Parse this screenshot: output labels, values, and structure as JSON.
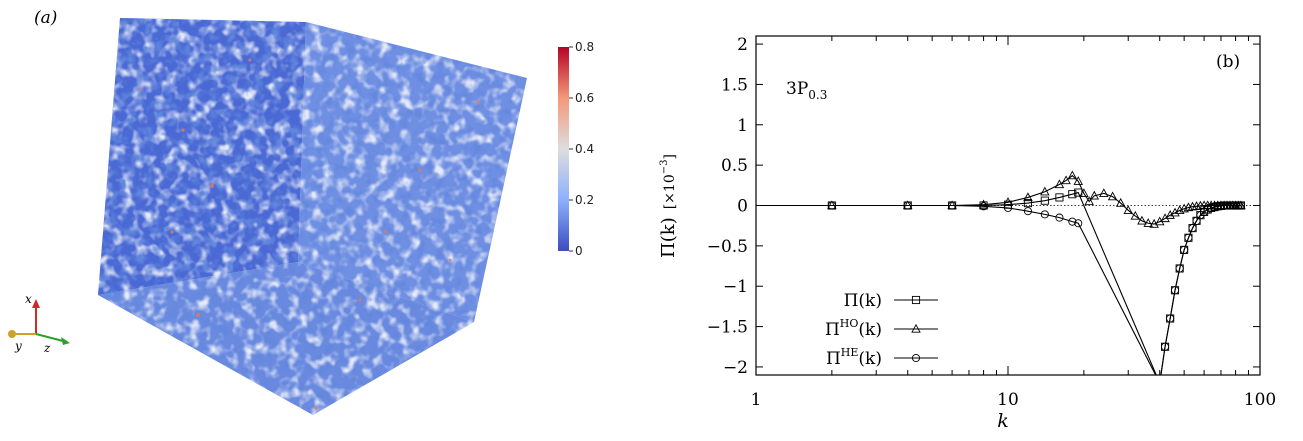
{
  "panel_a": {
    "label": "(a)",
    "colorbar": {
      "ticks": [
        "0.8",
        "0.6",
        "0.4",
        "0.2",
        "0"
      ],
      "min": 0,
      "max": 0.8,
      "colors": [
        "#3b4cc0",
        "#8db0fe",
        "#dddddd",
        "#f4987a",
        "#b40426"
      ]
    },
    "axes_triad": {
      "x": "x",
      "y": "y",
      "z": "z"
    },
    "colors": {
      "base": "#4f70d8",
      "x_axis": "#d62728",
      "y_axis": "#c9a227",
      "z_axis": "#2ca02c"
    }
  },
  "chart_data": {
    "type": "line",
    "panel_label": "(b)",
    "annotation": {
      "main": "3P",
      "subscript": "0.3"
    },
    "xlabel": "k",
    "ylabel": {
      "main": "Π(k)",
      "factor_prefix": "[×10",
      "factor_exponent": "−3",
      "factor_suffix": "]"
    },
    "xscale": "log",
    "xlim": [
      1,
      100
    ],
    "ylim": [
      -2.1,
      2.1
    ],
    "xticks": [
      {
        "value": 1,
        "label": "1"
      },
      {
        "value": 10,
        "label": "10"
      },
      {
        "value": 100,
        "label": "100"
      }
    ],
    "yticks": [
      {
        "value": 2,
        "label": "2"
      },
      {
        "value": 1.5,
        "label": "1.5"
      },
      {
        "value": 1,
        "label": "1"
      },
      {
        "value": 0.5,
        "label": "0.5"
      },
      {
        "value": 0,
        "label": "0"
      },
      {
        "value": -0.5,
        "label": "−0.5"
      },
      {
        "value": -1,
        "label": "−1"
      },
      {
        "value": -1.5,
        "label": "−1.5"
      },
      {
        "value": -2,
        "label": "−2"
      }
    ],
    "zero_line": true,
    "legend_position": "bottom-left",
    "series": [
      {
        "name": {
          "main": "Π(k)",
          "sup": ""
        },
        "marker": "square",
        "x": [
          2,
          4,
          6,
          8,
          10,
          12,
          14,
          16,
          18,
          19,
          40,
          42,
          44,
          46,
          48,
          50,
          52,
          54,
          56,
          58,
          60,
          62,
          64,
          66,
          68,
          70,
          72,
          74,
          76,
          78,
          80,
          82,
          84
        ],
        "y": [
          0,
          0,
          0,
          0,
          0.01,
          0.03,
          0.06,
          0.1,
          0.14,
          0.16,
          -2.2,
          -1.75,
          -1.4,
          -1.05,
          -0.78,
          -0.55,
          -0.4,
          -0.28,
          -0.19,
          -0.12,
          -0.08,
          -0.05,
          -0.03,
          -0.02,
          -0.01,
          -0.005,
          0,
          0,
          0,
          0,
          0,
          0,
          0
        ]
      },
      {
        "name": {
          "main": "Π",
          "sup": "HO",
          "suffix": "(k)"
        },
        "marker": "triangle",
        "x": [
          2,
          4,
          6,
          8,
          10,
          12,
          14,
          16,
          17,
          18,
          19,
          20,
          21,
          22,
          24,
          26,
          28,
          30,
          32,
          34,
          36,
          38,
          40,
          42,
          44,
          46,
          48,
          50,
          52,
          54,
          56,
          58,
          60,
          62,
          64,
          66,
          68,
          70,
          72,
          74,
          76,
          78,
          80,
          82,
          84
        ],
        "y": [
          0,
          0,
          0,
          0.01,
          0.04,
          0.1,
          0.17,
          0.26,
          0.31,
          0.37,
          0.3,
          0.15,
          0.05,
          0.12,
          0.15,
          0.11,
          0.03,
          -0.06,
          -0.13,
          -0.19,
          -0.22,
          -0.23,
          -0.2,
          -0.16,
          -0.12,
          -0.09,
          -0.06,
          -0.04,
          -0.025,
          -0.015,
          -0.01,
          -0.005,
          0,
          0,
          0,
          0,
          0,
          0,
          0,
          0,
          0,
          0,
          0,
          0,
          0
        ]
      },
      {
        "name": {
          "main": "Π",
          "sup": "HE",
          "suffix": "(k)"
        },
        "marker": "circle",
        "x": [
          2,
          4,
          6,
          8,
          10,
          12,
          14,
          16,
          18,
          19,
          40,
          42,
          44,
          46,
          48,
          50,
          52,
          54,
          56,
          58,
          60,
          62,
          64,
          66,
          68,
          70,
          72,
          74,
          76,
          78,
          80,
          82,
          84
        ],
        "y": [
          0,
          0,
          0,
          -0.01,
          -0.03,
          -0.07,
          -0.11,
          -0.15,
          -0.2,
          -0.22,
          -2.2,
          -1.75,
          -1.4,
          -1.05,
          -0.78,
          -0.55,
          -0.4,
          -0.28,
          -0.19,
          -0.12,
          -0.08,
          -0.05,
          -0.03,
          -0.02,
          -0.01,
          -0.005,
          0,
          0,
          0,
          0,
          0,
          0,
          0
        ]
      }
    ]
  }
}
